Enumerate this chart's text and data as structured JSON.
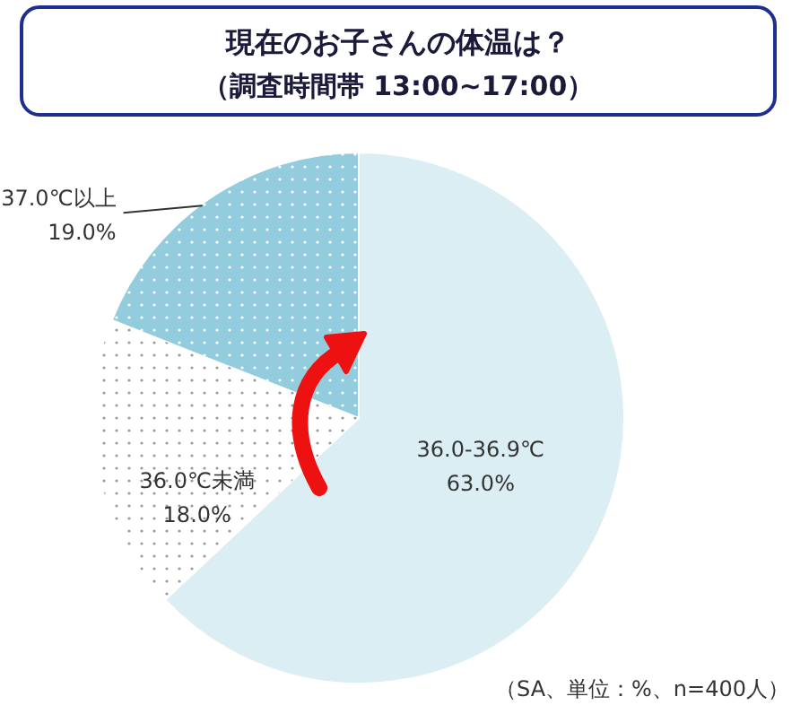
{
  "chart_data": {
    "type": "pie",
    "title": "現在のお子さんの体温は？",
    "subtitle": "（調査時間帯 13:00~17:00）",
    "categories": [
      "36.0-36.9℃",
      "36.0℃未満",
      "37.0℃以上"
    ],
    "values": [
      63.0,
      18.0,
      19.0
    ],
    "value_labels": [
      "63.0%",
      "18.0%",
      "19.0%"
    ],
    "colors": [
      "#daeef3",
      "#ffffff",
      "#93cddd"
    ],
    "annotations": [
      "（SA、単位：%、n=400人）"
    ]
  }
}
